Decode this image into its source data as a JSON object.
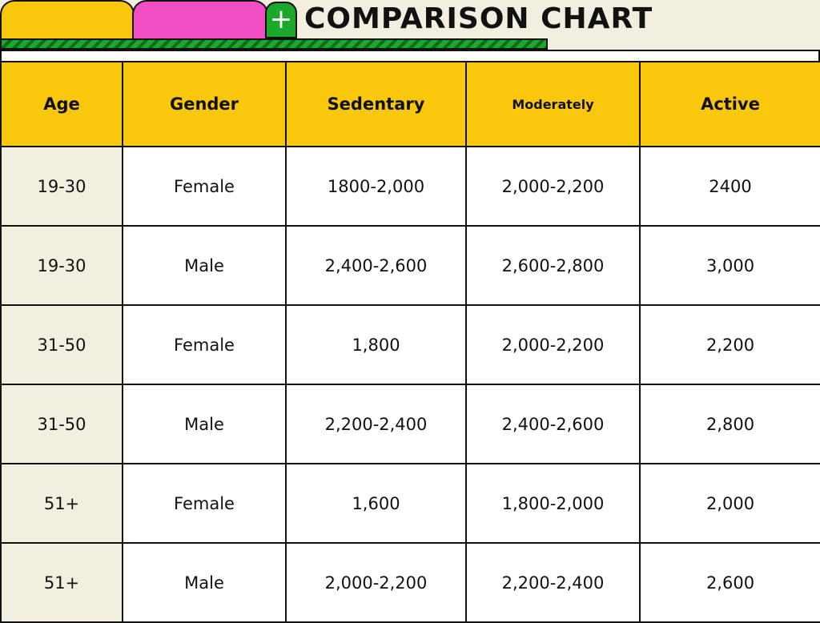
{
  "title": "COMPARISON CHART",
  "icons": {
    "plus_tab": "plus-icon"
  },
  "colors": {
    "header_bg": "#f9c80c",
    "tab_yellow": "#f9c80c",
    "tab_pink": "#f24ec4",
    "tab_green": "#1aa92a",
    "page_bg": "#f3efe0"
  },
  "table": {
    "headers": [
      "Age",
      "Gender",
      "Sedentary",
      "Moderately",
      "Active"
    ],
    "rows": [
      [
        "19-30",
        "Female",
        "1800-2,000",
        "2,000-2,200",
        "2400"
      ],
      [
        "19-30",
        "Male",
        "2,400-2,600",
        "2,600-2,800",
        "3,000"
      ],
      [
        "31-50",
        "Female",
        "1,800",
        "2,000-2,200",
        "2,200"
      ],
      [
        "31-50",
        "Male",
        "2,200-2,400",
        "2,400-2,600",
        "2,800"
      ],
      [
        "51+",
        "Female",
        "1,600",
        "1,800-2,000",
        "2,000"
      ],
      [
        "51+",
        "Male",
        "2,000-2,200",
        "2,200-2,400",
        "2,600"
      ]
    ]
  }
}
